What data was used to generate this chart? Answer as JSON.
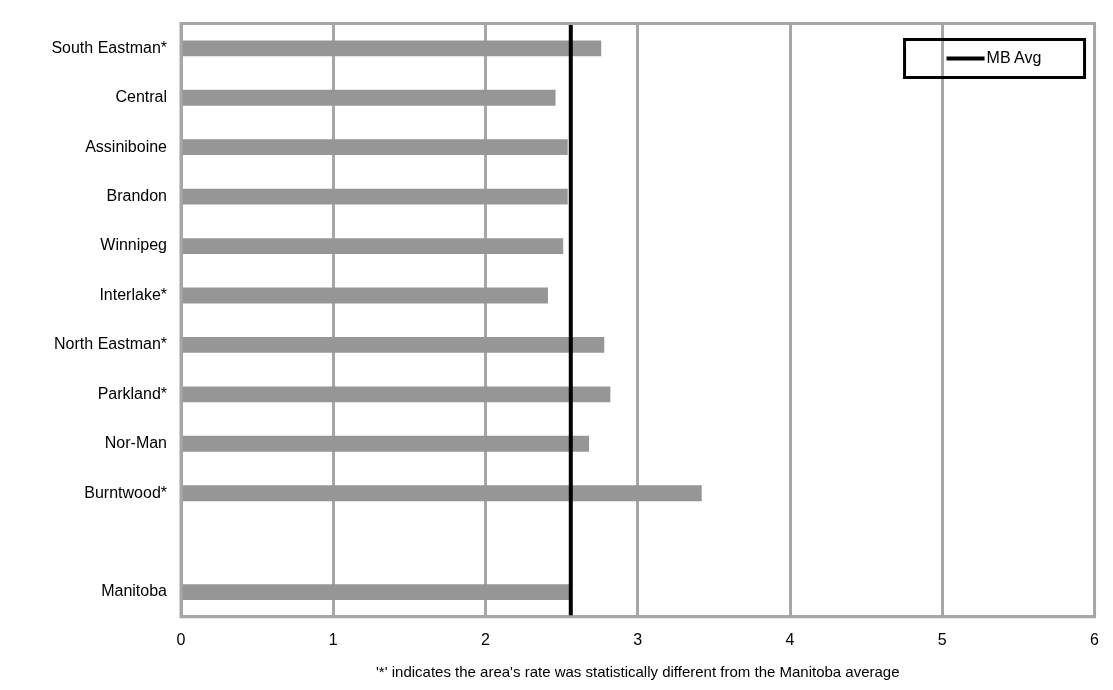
{
  "chart_data": {
    "type": "bar",
    "orientation": "horizontal",
    "xlabel": "'*' indicates the area's rate was statistically different from the Manitoba average",
    "categories": [
      "South Eastman*",
      "Central",
      "Assiniboine",
      "Brandon",
      "Winnipeg",
      "Interlake*",
      "North Eastman*",
      "Parkland*",
      "Nor-Man",
      "Burntwood*",
      null,
      "Manitoba"
    ],
    "values": [
      2.76,
      2.46,
      2.54,
      2.54,
      2.51,
      2.41,
      2.78,
      2.82,
      2.68,
      3.42,
      null,
      2.55
    ],
    "color": "#969696",
    "xlim": [
      0,
      6
    ],
    "xticks": [
      0,
      1,
      2,
      3,
      4,
      5,
      6
    ],
    "grid": "x",
    "ref_lines": [
      {
        "axis": "x",
        "value": 2.56,
        "label": "MB Avg",
        "color": "#000000"
      }
    ],
    "legend": "top right"
  }
}
